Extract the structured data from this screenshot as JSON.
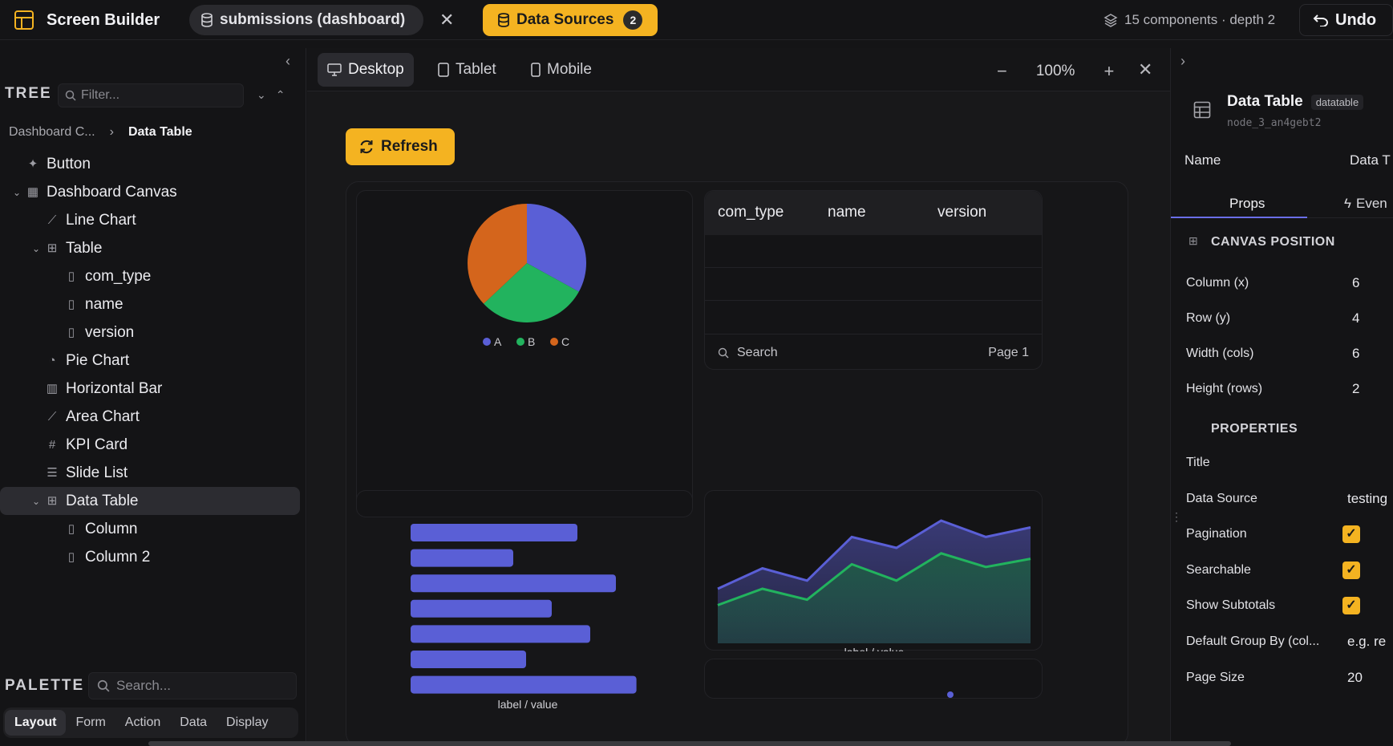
{
  "app": {
    "title": "Screen Builder",
    "tab_label": "submissions (dashboard)",
    "data_sources_label": "Data Sources",
    "data_sources_count": "2",
    "meta_text": "15 components · depth 2",
    "undo_label": "Undo",
    "accent_color": "#f4b321"
  },
  "left": {
    "tree_heading": "TREE",
    "filter_placeholder": "Filter...",
    "breadcrumb": {
      "parent": "Dashboard C...",
      "current": "Data Table"
    },
    "tree": [
      {
        "label": "Button",
        "icon": "pointer-icon",
        "depth": 0,
        "expander": false
      },
      {
        "label": "Dashboard Canvas",
        "icon": "layout-icon",
        "depth": 0,
        "expander": true
      },
      {
        "label": "Line Chart",
        "icon": "line-chart-icon",
        "depth": 1,
        "expander": false
      },
      {
        "label": "Table",
        "icon": "table-icon",
        "depth": 1,
        "expander": true
      },
      {
        "label": "com_type",
        "icon": "column-icon",
        "depth": 2,
        "expander": false
      },
      {
        "label": "name",
        "icon": "column-icon",
        "depth": 2,
        "expander": false
      },
      {
        "label": "version",
        "icon": "column-icon",
        "depth": 2,
        "expander": false
      },
      {
        "label": "Pie Chart",
        "icon": "pie-chart-icon",
        "depth": 1,
        "expander": false
      },
      {
        "label": "Horizontal Bar",
        "icon": "bar-chart-icon",
        "depth": 1,
        "expander": false
      },
      {
        "label": "Area Chart",
        "icon": "area-chart-icon",
        "depth": 1,
        "expander": false
      },
      {
        "label": "KPI Card",
        "icon": "hash-icon",
        "depth": 1,
        "expander": false
      },
      {
        "label": "Slide List",
        "icon": "list-icon",
        "depth": 1,
        "expander": false
      },
      {
        "label": "Data Table",
        "icon": "table-icon",
        "depth": 1,
        "expander": true,
        "selected": true
      },
      {
        "label": "Column",
        "icon": "column-icon",
        "depth": 2,
        "expander": false
      },
      {
        "label": "Column 2",
        "icon": "column-icon",
        "depth": 2,
        "expander": false
      }
    ],
    "palette_heading": "PALETTE",
    "palette_search_placeholder": "Search...",
    "palette_tabs": [
      "Layout",
      "Form",
      "Action",
      "Data",
      "Display"
    ],
    "palette_active": "Layout"
  },
  "viewport": {
    "devices": [
      "Desktop",
      "Tablet",
      "Mobile"
    ],
    "active_device": "Desktop",
    "zoom": "100%"
  },
  "canvas": {
    "refresh_label": "Refresh",
    "table_columns": [
      "com_type",
      "name",
      "version"
    ],
    "table_search_label": "Search",
    "table_page_label": "Page 1",
    "hbar_label": "label / value",
    "area_label": "label / value"
  },
  "chart_data": [
    {
      "type": "pie",
      "categories": [
        "A",
        "B",
        "C"
      ],
      "values": [
        33,
        30,
        37
      ],
      "colors": [
        "#5a5fd6",
        "#22b35e",
        "#d4651c"
      ]
    },
    {
      "type": "bar",
      "orientation": "horizontal",
      "categories": [
        "",
        "",
        "",
        "",
        "",
        "",
        ""
      ],
      "values": [
        65,
        40,
        80,
        55,
        70,
        45,
        88
      ],
      "xlim": [
        0,
        100
      ],
      "xlabel": "label / value",
      "color": "#5a5fd6"
    },
    {
      "type": "area",
      "x": [
        1,
        2,
        3,
        4,
        5,
        6,
        7,
        8
      ],
      "series": [
        {
          "values": [
            40,
            55,
            46,
            78,
            70,
            90,
            78,
            85
          ],
          "color": "#5a5fd6"
        },
        {
          "values": [
            28,
            40,
            32,
            58,
            46,
            66,
            56,
            62
          ],
          "color": "#22b35e"
        }
      ],
      "ylim": [
        0,
        100
      ],
      "xlabel": "label / value"
    }
  ],
  "inspector": {
    "component_title": "Data Table",
    "component_type": "datatable",
    "component_id": "node_3_an4gebt2",
    "name_label": "Name",
    "name_value": "Data T",
    "tabs": [
      "Props",
      "Even"
    ],
    "active_tab": "Props",
    "canvas_section": "CANVAS POSITION",
    "position": [
      {
        "label": "Column (x)",
        "value": "6"
      },
      {
        "label": "Row (y)",
        "value": "4"
      },
      {
        "label": "Width (cols)",
        "value": "6"
      },
      {
        "label": "Height (rows)",
        "value": "2"
      }
    ],
    "properties_section": "PROPERTIES",
    "properties": [
      {
        "label": "Title",
        "value": ""
      },
      {
        "label": "Data Source",
        "value": "testing"
      },
      {
        "label": "Pagination",
        "checked": true
      },
      {
        "label": "Searchable",
        "checked": true
      },
      {
        "label": "Show Subtotals",
        "checked": true
      },
      {
        "label": "Default Group By (col...",
        "value": "e.g. re"
      },
      {
        "label": "Page Size",
        "value": "20"
      }
    ]
  }
}
